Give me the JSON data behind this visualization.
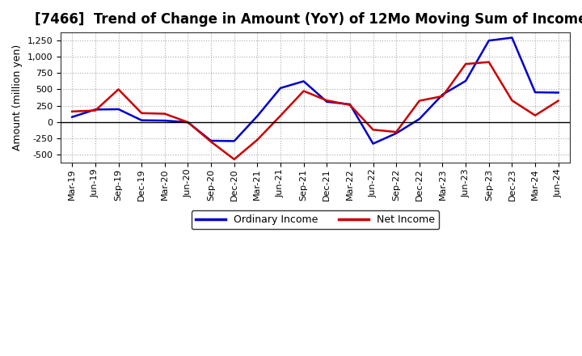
{
  "title": "[7466]  Trend of Change in Amount (YoY) of 12Mo Moving Sum of Incomes",
  "ylabel": "Amount (million yen)",
  "background_color": "#ffffff",
  "plot_bg_color": "#ffffff",
  "labels": [
    "Mar-19",
    "Jun-19",
    "Sep-19",
    "Dec-19",
    "Mar-20",
    "Jun-20",
    "Sep-20",
    "Dec-20",
    "Mar-21",
    "Jun-21",
    "Sep-21",
    "Dec-21",
    "Mar-22",
    "Jun-22",
    "Sep-22",
    "Dec-22",
    "Mar-23",
    "Jun-23",
    "Sep-23",
    "Dec-23",
    "Mar-24",
    "Jun-24"
  ],
  "ordinary_income": [
    75,
    190,
    195,
    25,
    20,
    -5,
    -290,
    -295,
    90,
    520,
    625,
    310,
    270,
    -335,
    -175,
    45,
    420,
    630,
    1250,
    1295,
    455,
    450
  ],
  "net_income": [
    160,
    175,
    500,
    135,
    125,
    -5,
    -305,
    -575,
    -275,
    95,
    475,
    330,
    260,
    -120,
    -155,
    325,
    395,
    890,
    920,
    330,
    100,
    325
  ],
  "ordinary_color": "#0000cc",
  "net_color": "#cc0000",
  "line_width": 1.8,
  "ylim": [
    -625,
    1375
  ],
  "yticks": [
    -500,
    -250,
    0,
    250,
    500,
    750,
    1000,
    1250
  ],
  "grid_color": "#aaaaaa",
  "title_fontsize": 12,
  "legend_labels": [
    "Ordinary Income",
    "Net Income"
  ]
}
